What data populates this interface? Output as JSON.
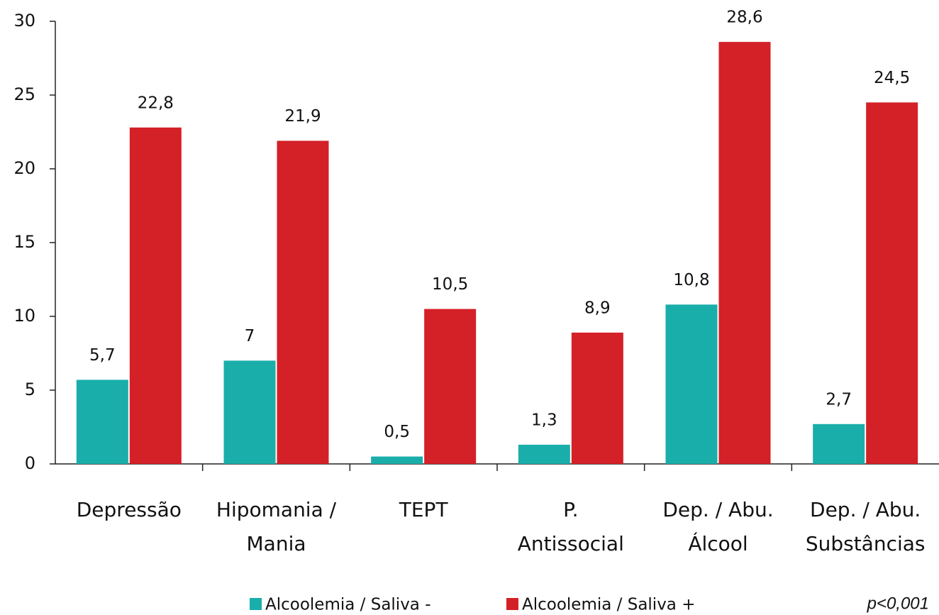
{
  "chart_data": {
    "type": "bar",
    "categories": [
      "Depressão",
      "Hipomania /\nMania",
      "TEPT",
      "P.\nAntissocial",
      "Dep. / Abu.\nÁlcool",
      "Dep. / Abu.\nSubstâncias"
    ],
    "series": [
      {
        "name": "Alcoolemia / Saliva -",
        "color": "#1aaeaa",
        "values": [
          5.7,
          7,
          0.5,
          1.3,
          10.8,
          2.7
        ],
        "value_labels": [
          "5,7",
          "7",
          "0,5",
          "1,3",
          "10,8",
          "2,7"
        ]
      },
      {
        "name": "Alcoolemia / Saliva +",
        "color": "#d42027",
        "values": [
          22.8,
          21.9,
          10.5,
          8.9,
          28.6,
          24.5
        ],
        "value_labels": [
          "22,8",
          "21,9",
          "10,5",
          "8,9",
          "28,6",
          "24,5"
        ]
      }
    ],
    "ylim": [
      0,
      30
    ],
    "yticks": [
      0,
      5,
      10,
      15,
      20,
      25,
      30
    ],
    "grid": false,
    "annotation": "p<0,001",
    "legend": "bottom"
  }
}
